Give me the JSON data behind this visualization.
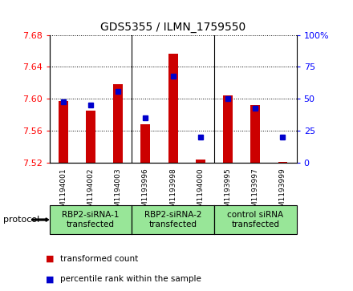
{
  "title": "GDS5355 / ILMN_1759550",
  "samples": [
    "GSM1194001",
    "GSM1194002",
    "GSM1194003",
    "GSM1193996",
    "GSM1193998",
    "GSM1194000",
    "GSM1193995",
    "GSM1193997",
    "GSM1193999"
  ],
  "red_values": [
    7.597,
    7.585,
    7.618,
    7.568,
    7.657,
    7.524,
    7.604,
    7.592,
    7.521
  ],
  "blue_values_pct": [
    48,
    45,
    56,
    35,
    68,
    20,
    50,
    43,
    20
  ],
  "ylim": [
    7.52,
    7.68
  ],
  "yticks": [
    7.52,
    7.56,
    7.6,
    7.64,
    7.68
  ],
  "right_yticks": [
    0,
    25,
    50,
    75,
    100
  ],
  "right_ytick_labels": [
    "0",
    "25",
    "50",
    "75",
    "100%"
  ],
  "groups": [
    {
      "label": "RBP2-siRNA-1\ntransfected",
      "start": 0,
      "end": 3,
      "color": "#98e698"
    },
    {
      "label": "RBP2-siRNA-2\ntransfected",
      "start": 3,
      "end": 6,
      "color": "#98e698"
    },
    {
      "label": "control siRNA\ntransfected",
      "start": 6,
      "end": 9,
      "color": "#98e698"
    }
  ],
  "bar_color": "#cc0000",
  "dot_color": "#0000cc",
  "bar_bottom": 7.52,
  "protocol_label": "protocol",
  "legend_red": "transformed count",
  "legend_blue": "percentile rank within the sample",
  "bar_width": 0.35
}
